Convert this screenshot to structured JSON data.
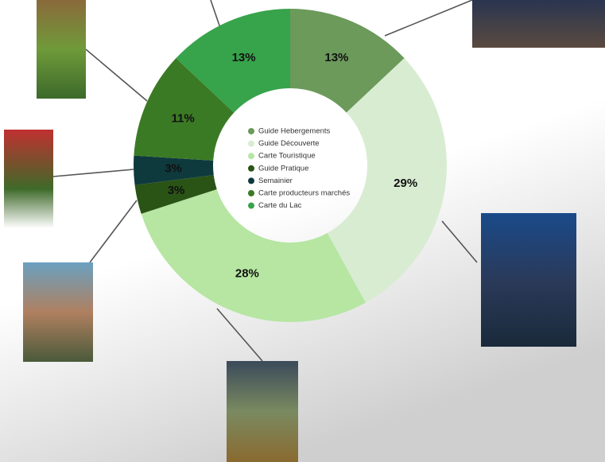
{
  "chart_data": {
    "type": "donut",
    "categories": [
      "Guide Hebergements",
      "Guide Découverte",
      "Carte Touristique",
      "Guide Pratique",
      "Semainier",
      "Carte producteurs marchés",
      "Carte du Lac"
    ],
    "values": [
      13,
      29,
      28,
      3,
      3,
      11,
      13
    ],
    "value_labels": [
      "13%",
      "29%",
      "28%",
      "3%",
      "3%",
      "11%",
      "13%"
    ],
    "colors": [
      "#6b9a5b",
      "#d8ecd2",
      "#b6e6a2",
      "#2a5316",
      "#0e3a3d",
      "#3b7a24",
      "#37a34b"
    ]
  }
}
